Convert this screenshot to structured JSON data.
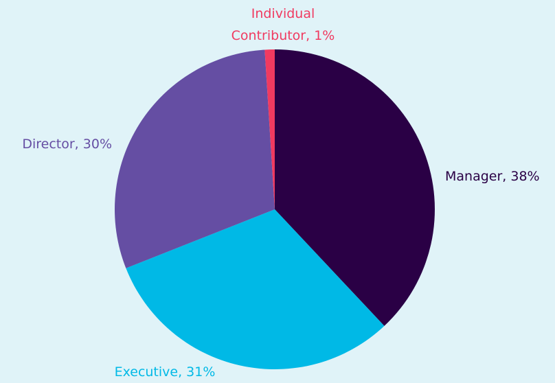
{
  "chart_data": {
    "type": "pie",
    "values": [
      38,
      31,
      30,
      1
    ],
    "value_labels": [
      "Manager, 38%",
      "Executive, 31%",
      "Director, 30%",
      "Individual Contributor, 1%"
    ],
    "colors": [
      "#2a0045",
      "#00b9e6",
      "#654ea3",
      "#f03a60"
    ]
  }
}
